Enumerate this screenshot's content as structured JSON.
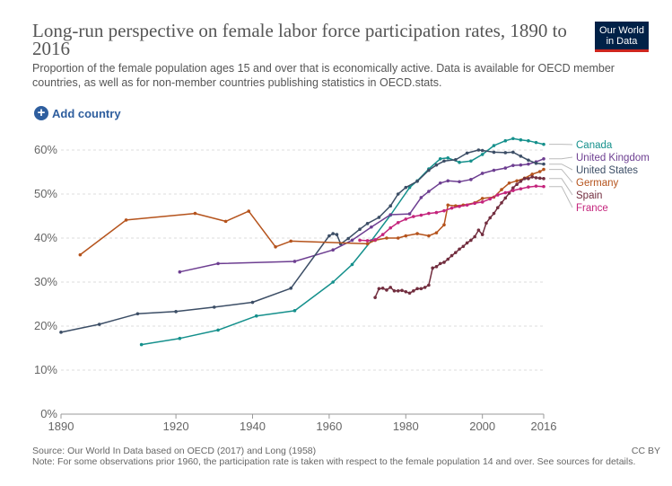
{
  "header": {
    "title": "Long-run perspective on female labor force participation rates, 1890 to 2016",
    "subtitle": "Proportion of the female population ages 15 and over that is economically active. Data is available for OECD member countries, as well as for non-member countries publishing statistics in OECD.stats.",
    "logo_line1": "Our World",
    "logo_line2": "in Data"
  },
  "controls": {
    "add_country_label": "Add country",
    "plus_symbol": "+"
  },
  "footer": {
    "source": "Source: Our World In Data based on OECD (2017) and Long (1958)",
    "license": "CC BY",
    "note": "Note: For some observations prior 1960, the participation rate is taken with respect to the female population 14 and over. See sources for details."
  },
  "chart_data": {
    "type": "line",
    "title": "Long-run perspective on female labor force participation rates, 1890 to 2016",
    "xlabel": "",
    "ylabel": "",
    "xlim": [
      1890,
      2016
    ],
    "ylim": [
      0,
      60
    ],
    "x_ticks": [
      1890,
      1920,
      1940,
      1960,
      1980,
      2000,
      2016
    ],
    "y_ticks": [
      0,
      10,
      20,
      30,
      40,
      50,
      60
    ],
    "y_tick_labels": [
      "0%",
      "10%",
      "20%",
      "30%",
      "40%",
      "50%",
      "60%"
    ],
    "grid": "horizontal dashed",
    "legend": "right, end of lines",
    "series": [
      {
        "name": "Canada",
        "color": "#15908c",
        "x": [
          1911,
          1921,
          1931,
          1941,
          1951,
          1961,
          1966,
          1971,
          1976,
          1981,
          1983,
          1986,
          1989,
          1991,
          1994,
          1997,
          2000,
          2003,
          2006,
          2008,
          2010,
          2012,
          2014,
          2016
        ],
        "y": [
          15.8,
          17.2,
          19.1,
          22.3,
          23.5,
          30,
          34,
          39.4,
          45.2,
          51.5,
          53,
          55.7,
          58,
          58.2,
          57.2,
          57.5,
          59,
          61,
          62.1,
          62.6,
          62.3,
          62.1,
          61.7,
          61.3
        ]
      },
      {
        "name": "United Kingdom",
        "color": "#6d3e91",
        "x": [
          1921,
          1931,
          1951,
          1961,
          1966,
          1971,
          1976,
          1981,
          1984,
          1986,
          1989,
          1991,
          1994,
          1997,
          2000,
          2003,
          2006,
          2008,
          2010,
          2012,
          2014,
          2016
        ],
        "y": [
          32.3,
          34.2,
          34.7,
          37.3,
          39.5,
          42.5,
          45.3,
          45.5,
          49.2,
          50.6,
          52.5,
          53,
          52.8,
          53.3,
          54.7,
          55.4,
          55.9,
          56.5,
          56.6,
          56.8,
          57.3,
          58
        ]
      },
      {
        "name": "United States",
        "color": "#3c4e66",
        "x": [
          1890,
          1900,
          1910,
          1920,
          1930,
          1940,
          1950,
          1960,
          1961,
          1962,
          1963,
          1965,
          1968,
          1970,
          1973,
          1976,
          1978,
          1980,
          1983,
          1986,
          1988,
          1990,
          1993,
          1996,
          1999,
          2000,
          2003,
          2006,
          2008,
          2010,
          2012,
          2014,
          2016
        ],
        "y": [
          18.6,
          20.4,
          22.8,
          23.3,
          24.3,
          25.4,
          28.6,
          40.5,
          41,
          40.8,
          38.7,
          39.9,
          42,
          43.3,
          44.7,
          47.3,
          50,
          51.5,
          52.9,
          55.4,
          56.6,
          57.5,
          57.8,
          59.3,
          60,
          59.9,
          59.5,
          59.4,
          59.5,
          58.6,
          57.7,
          57,
          56.8
        ]
      },
      {
        "name": "Germany",
        "color": "#b5531c",
        "x": [
          1895,
          1907,
          1925,
          1933,
          1939,
          1946,
          1950,
          1970,
          1972,
          1975,
          1978,
          1980,
          1983,
          1986,
          1988,
          1990,
          1991,
          1993,
          1995,
          1998,
          2000,
          2003,
          2005,
          2007,
          2009,
          2011,
          2013,
          2015,
          2016
        ],
        "y": [
          36.2,
          44.1,
          45.6,
          43.8,
          46.1,
          38,
          39.3,
          38.7,
          39.5,
          40,
          40,
          40.5,
          41,
          40.5,
          41.2,
          43,
          47.5,
          47.3,
          47.5,
          48,
          49,
          49.3,
          51,
          52.5,
          53,
          53.6,
          54.5,
          55.1,
          55.6
        ]
      },
      {
        "name": "Spain",
        "color": "#722e3f",
        "x": [
          1972,
          1973,
          1974,
          1975,
          1976,
          1977,
          1978,
          1979,
          1980,
          1981,
          1982,
          1983,
          1984,
          1985,
          1986,
          1987,
          1988,
          1989,
          1990,
          1991,
          1992,
          1993,
          1994,
          1995,
          1996,
          1997,
          1998,
          1999,
          2000,
          2001,
          2002,
          2003,
          2004,
          2005,
          2006,
          2007,
          2008,
          2009,
          2010,
          2011,
          2012,
          2013,
          2014,
          2015,
          2016
        ],
        "y": [
          26.5,
          28.5,
          28.6,
          28.2,
          28.8,
          28,
          28,
          28.1,
          27.8,
          27.5,
          28,
          28.5,
          28.5,
          28.8,
          29.3,
          33.2,
          33.5,
          34.2,
          34.5,
          35.2,
          36,
          36.7,
          37.5,
          38.1,
          38.9,
          39.5,
          40.3,
          41.8,
          40.8,
          43.4,
          44.6,
          45.6,
          46.9,
          48,
          49.1,
          50.2,
          51.4,
          52.2,
          52.9,
          53.5,
          53.5,
          53.9,
          53.7,
          53.6,
          53.5
        ]
      },
      {
        "name": "France",
        "color": "#c4247c",
        "x": [
          1968,
          1970,
          1972,
          1974,
          1976,
          1978,
          1980,
          1982,
          1984,
          1986,
          1988,
          1990,
          1992,
          1994,
          1996,
          1998,
          2000,
          2002,
          2004,
          2006,
          2008,
          2010,
          2012,
          2014,
          2016
        ],
        "y": [
          39.5,
          39.4,
          39.6,
          40.8,
          42.3,
          43.5,
          44.3,
          44.9,
          45.2,
          45.6,
          45.8,
          46.2,
          46.8,
          47.2,
          47.5,
          47.9,
          48.2,
          48.9,
          49.8,
          50.3,
          50.8,
          51.2,
          51.6,
          51.8,
          51.7
        ]
      }
    ]
  }
}
